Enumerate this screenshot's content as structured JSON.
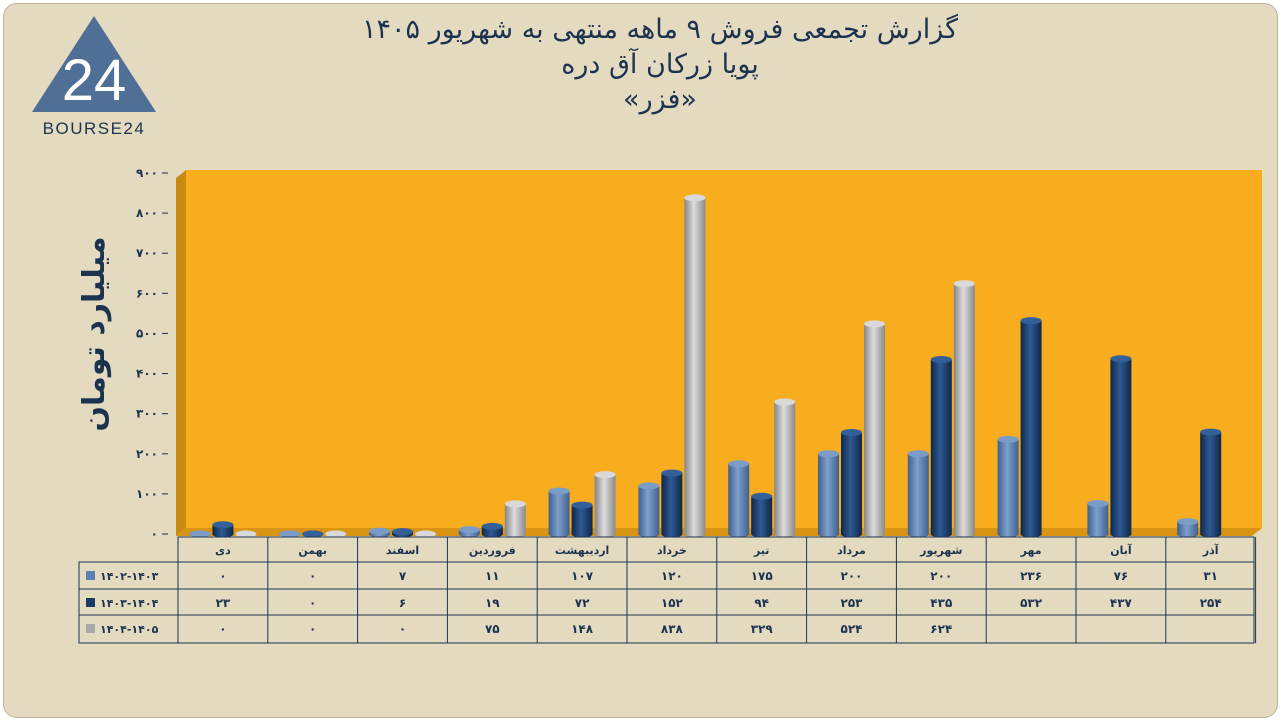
{
  "logo": {
    "text": "BOURSE24",
    "mark": "24"
  },
  "header": {
    "title": "گزارش تجمعی فروش ۹ ماهه منتهی به شهریور ۱۴۰۵",
    "company": "پویا زرکان آق دره",
    "symbol": "«فزر»"
  },
  "colors": {
    "plot_bg": "#f7ad1d",
    "series": [
      "#5b80b2",
      "#1a3a66",
      "#a9a9a9"
    ],
    "text": "#1c3350",
    "frame_bg": "#e3dac0"
  },
  "chart_data": {
    "type": "bar",
    "ylabel": "میلیارد تومان",
    "ylim": [
      0,
      900
    ],
    "yticks": [
      "۰",
      "۱۰۰",
      "۲۰۰",
      "۳۰۰",
      "۴۰۰",
      "۵۰۰",
      "۶۰۰",
      "۷۰۰",
      "۸۰۰",
      "۹۰۰"
    ],
    "categories": [
      "دی",
      "بهمن",
      "اسفند",
      "فروردین",
      "اردیبهشت",
      "خرداد",
      "تیر",
      "مرداد",
      "شهریور",
      "مهر",
      "آبان",
      "آذر"
    ],
    "series": [
      {
        "name": "۱۴۰۲-۱۴۰۳",
        "values": [
          0,
          0,
          7,
          11,
          107,
          120,
          175,
          200,
          200,
          236,
          76,
          31
        ],
        "labels": [
          "۰",
          "۰",
          "۷",
          "۱۱",
          "۱۰۷",
          "۱۲۰",
          "۱۷۵",
          "۲۰۰",
          "۲۰۰",
          "۲۳۶",
          "۷۶",
          "۳۱"
        ]
      },
      {
        "name": "۱۴۰۳-۱۴۰۴",
        "values": [
          23,
          0,
          6,
          19,
          72,
          152,
          94,
          253,
          435,
          532,
          437,
          254
        ],
        "labels": [
          "۲۳",
          "۰",
          "۶",
          "۱۹",
          "۷۲",
          "۱۵۲",
          "۹۴",
          "۲۵۳",
          "۴۳۵",
          "۵۳۲",
          "۴۳۷",
          "۲۵۴"
        ]
      },
      {
        "name": "۱۴۰۴-۱۴۰۵",
        "values": [
          0,
          0,
          0,
          75,
          148,
          838,
          329,
          524,
          624,
          null,
          null,
          null
        ],
        "labels": [
          "۰",
          "۰",
          "۰",
          "۷۵",
          "۱۴۸",
          "۸۳۸",
          "۳۲۹",
          "۵۲۴",
          "۶۲۴",
          "",
          "",
          ""
        ]
      }
    ],
    "legend": "table-left",
    "grid": false
  }
}
